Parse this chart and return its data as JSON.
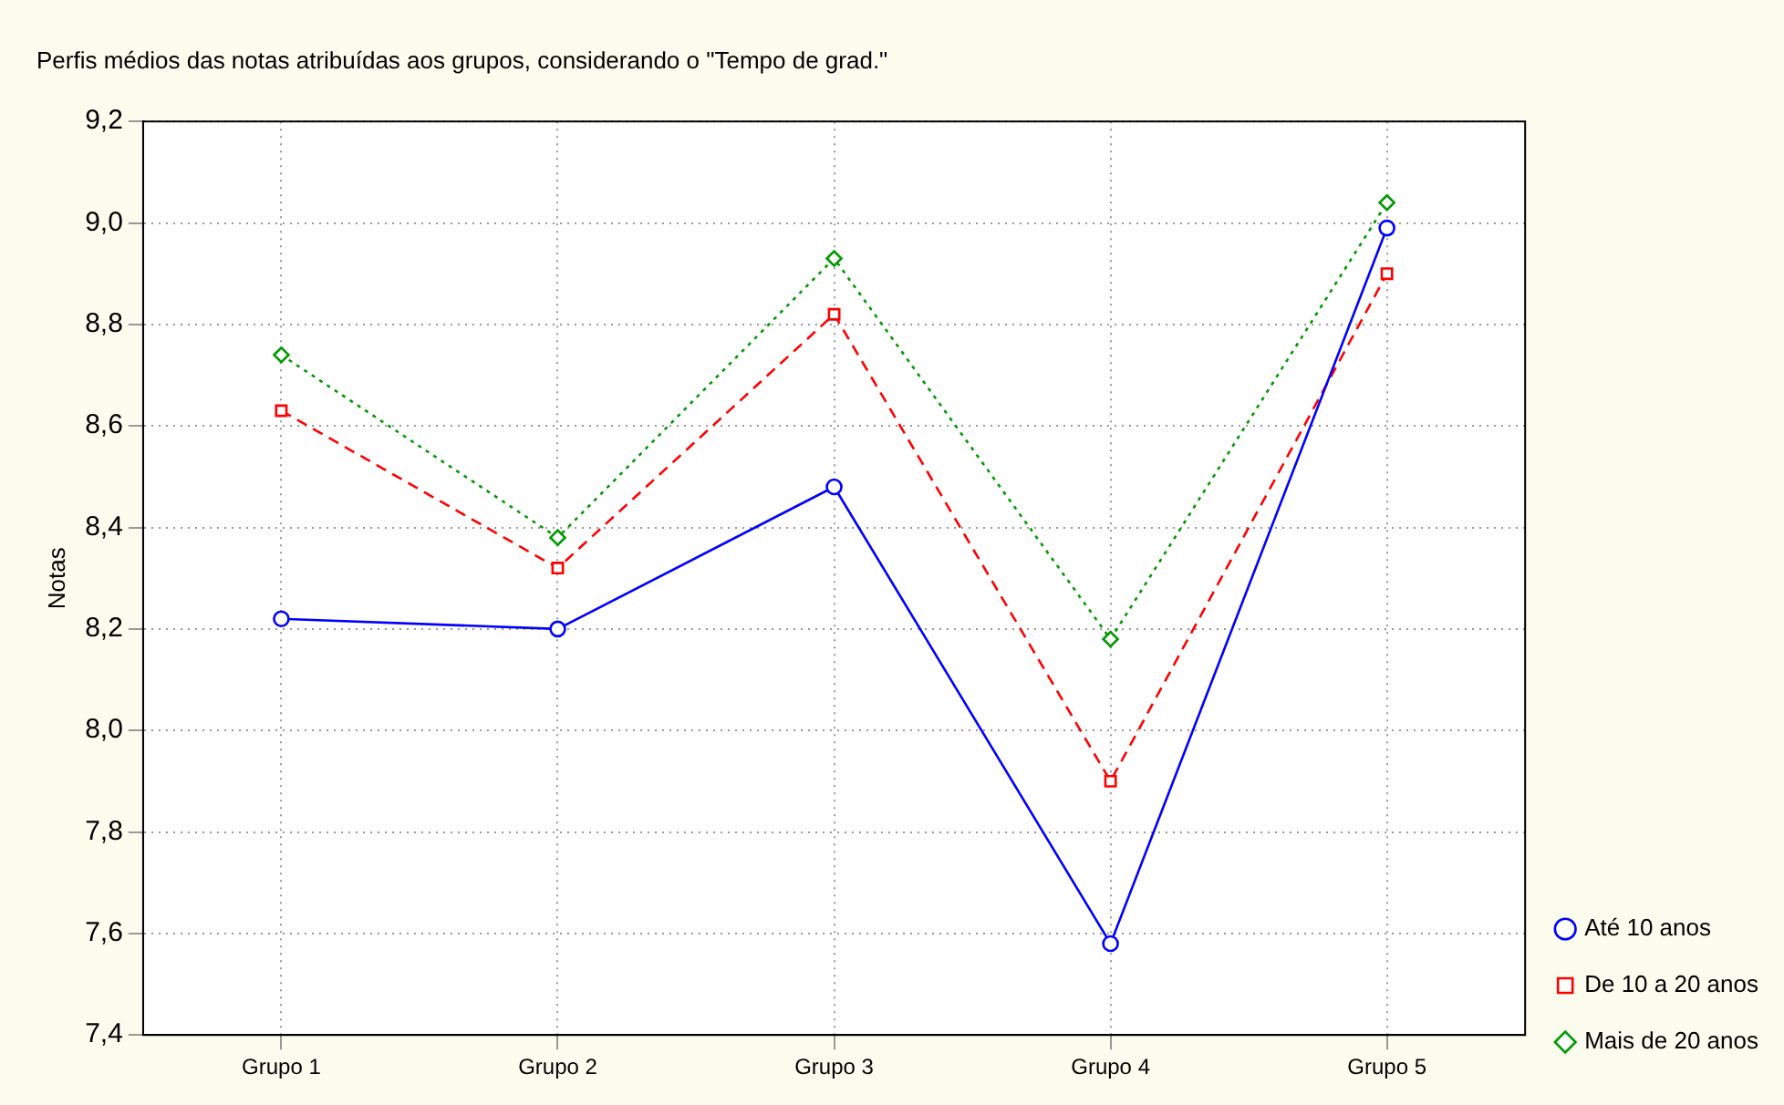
{
  "chart_data": {
    "type": "line",
    "title": "Perfis médios das notas atribuídas aos grupos, considerando o \"Tempo de grad.\"",
    "ylabel": "Notas",
    "categories": [
      "Grupo 1",
      "Grupo 2",
      "Grupo 3",
      "Grupo 4",
      "Grupo 5"
    ],
    "series": [
      {
        "name": "Até 10 anos",
        "color": "#0000ff",
        "marker": "circle",
        "line_style": "solid",
        "values": [
          8.22,
          8.2,
          8.48,
          7.58,
          8.99
        ]
      },
      {
        "name": "De 10 a 20 anos",
        "color": "#ff0000",
        "marker": "square",
        "line_style": "dashed",
        "values": [
          8.63,
          8.32,
          8.82,
          7.9,
          8.9
        ]
      },
      {
        "name": "Mais de 20 anos",
        "color": "#009900",
        "marker": "diamond",
        "line_style": "dotted",
        "values": [
          8.74,
          8.38,
          8.93,
          8.18,
          9.04
        ]
      }
    ],
    "ylim": [
      7.4,
      9.2
    ],
    "yticks": [
      {
        "value": 7.4,
        "label": "7,4"
      },
      {
        "value": 7.6,
        "label": "7,6"
      },
      {
        "value": 7.8,
        "label": "7,8"
      },
      {
        "value": 8.0,
        "label": "8,0"
      },
      {
        "value": 8.2,
        "label": "8,2"
      },
      {
        "value": 8.4,
        "label": "8,4"
      },
      {
        "value": 8.6,
        "label": "8,6"
      },
      {
        "value": 8.8,
        "label": "8,8"
      },
      {
        "value": 9.0,
        "label": "9,0"
      },
      {
        "value": 9.2,
        "label": "9,2"
      }
    ],
    "grid": true,
    "legend": "bottom right"
  }
}
